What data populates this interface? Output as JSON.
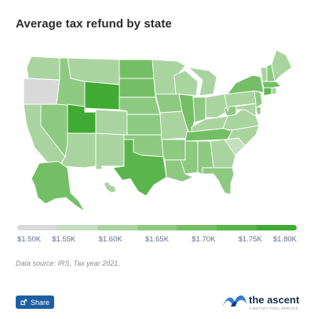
{
  "title": "Average tax refund by state",
  "legend": {
    "labels": [
      "$1.50K",
      "$1.55K",
      "$1.60K",
      "$1.65K",
      "$1.70K",
      "$1.75K",
      "$1.80K"
    ],
    "colors": [
      "#d9d9d9",
      "#c3dfbd",
      "#a9d49f",
      "#8ec982",
      "#74bf66",
      "#5ab54d",
      "#3fab32"
    ]
  },
  "source": "Data source: IRS, Tax year 2021.",
  "share": {
    "label": "Share",
    "icon": "share-icon"
  },
  "brand": {
    "name": "the ascent",
    "sub": "A MOTLEY FOOL SERVICE",
    "icon": "ascent-logo-icon"
  },
  "map_data": {
    "type": "choropleth",
    "region": "United States",
    "unit": "USD thousands",
    "scale": {
      "min": 1.5,
      "max": 1.8
    },
    "colors": {
      "stroke": "#ffffff",
      "c1": "#d9d9d9",
      "c2": "#c3dfbd",
      "c3": "#a9d49f",
      "c4": "#8ec982",
      "c5": "#74bf66",
      "c6": "#5ab54d",
      "c7": "#3fab32"
    },
    "states": [
      {
        "id": "WA",
        "value": 1.6
      },
      {
        "id": "OR",
        "value": 1.5
      },
      {
        "id": "ID",
        "value": 1.66
      },
      {
        "id": "MT",
        "value": 1.62
      },
      {
        "id": "WY",
        "value": 1.8
      },
      {
        "id": "ND",
        "value": 1.72
      },
      {
        "id": "SD",
        "value": 1.72
      },
      {
        "id": "NE",
        "value": 1.66
      },
      {
        "id": "KS",
        "value": 1.66
      },
      {
        "id": "OK",
        "value": 1.64
      },
      {
        "id": "TX",
        "value": 1.73
      },
      {
        "id": "NM",
        "value": 1.6
      },
      {
        "id": "CO",
        "value": 1.62
      },
      {
        "id": "UT",
        "value": 1.8
      },
      {
        "id": "AZ",
        "value": 1.6
      },
      {
        "id": "NV",
        "value": 1.64
      },
      {
        "id": "CA",
        "value": 1.6
      },
      {
        "id": "MN",
        "value": 1.62
      },
      {
        "id": "IA",
        "value": 1.64
      },
      {
        "id": "MO",
        "value": 1.62
      },
      {
        "id": "AR",
        "value": 1.66
      },
      {
        "id": "LA",
        "value": 1.66
      },
      {
        "id": "WI",
        "value": 1.62
      },
      {
        "id": "IL",
        "value": 1.69
      },
      {
        "id": "MI",
        "value": 1.62
      },
      {
        "id": "IN",
        "value": 1.64
      },
      {
        "id": "OH",
        "value": 1.62
      },
      {
        "id": "KY",
        "value": 1.62
      },
      {
        "id": "TN",
        "value": 1.68
      },
      {
        "id": "MS",
        "value": 1.66
      },
      {
        "id": "AL",
        "value": 1.64
      },
      {
        "id": "GA",
        "value": 1.62
      },
      {
        "id": "FL",
        "value": 1.66
      },
      {
        "id": "SC",
        "value": 1.56
      },
      {
        "id": "NC",
        "value": 1.6
      },
      {
        "id": "VA",
        "value": 1.62
      },
      {
        "id": "WV",
        "value": 1.64
      },
      {
        "id": "PA",
        "value": 1.62
      },
      {
        "id": "NY",
        "value": 1.7
      },
      {
        "id": "VT",
        "value": 1.62
      },
      {
        "id": "NH",
        "value": 1.66
      },
      {
        "id": "ME",
        "value": 1.6
      },
      {
        "id": "MA",
        "value": 1.68
      },
      {
        "id": "CT",
        "value": 1.74
      },
      {
        "id": "RI",
        "value": 1.62
      },
      {
        "id": "NJ",
        "value": 1.66
      },
      {
        "id": "DE",
        "value": 1.64
      },
      {
        "id": "MD",
        "value": 1.62
      },
      {
        "id": "AK",
        "value": 1.72
      },
      {
        "id": "HI",
        "value": 1.62
      }
    ]
  }
}
